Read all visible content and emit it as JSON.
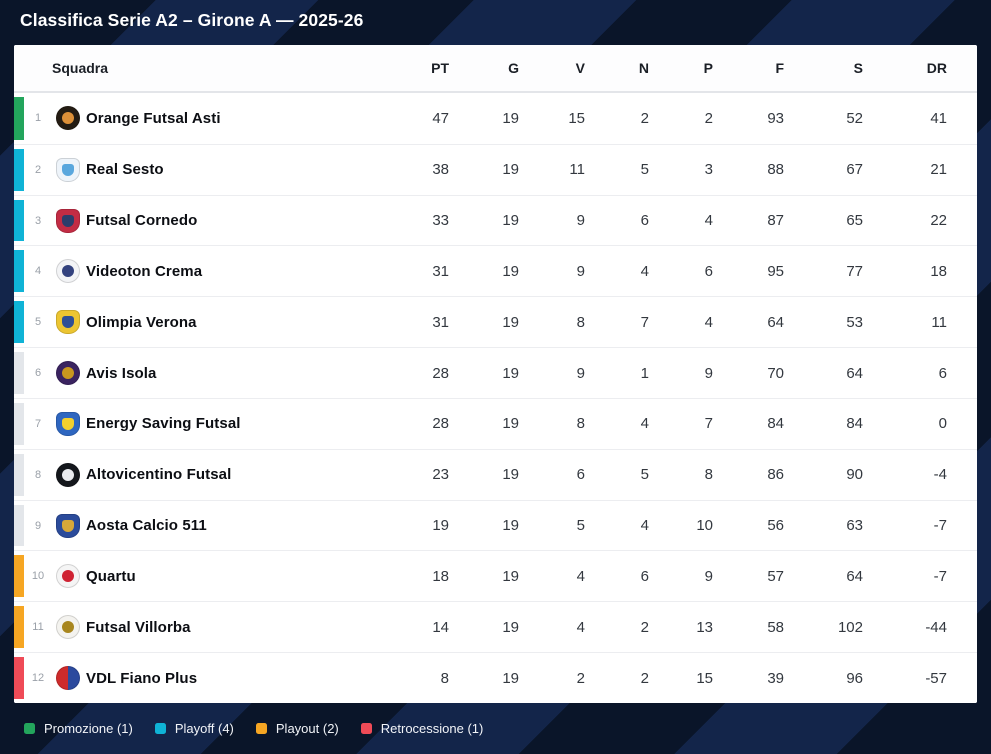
{
  "title": "Classifica Serie A2 – Girone A — 2025-26",
  "table": {
    "columns": [
      "Squadra",
      "PT",
      "G",
      "V",
      "N",
      "P",
      "F",
      "S",
      "DR"
    ],
    "rows": [
      {
        "pos": 1,
        "team": "Orange Futsal Asti",
        "zone": "promozione",
        "pt": 47,
        "g": 19,
        "v": 15,
        "n": 2,
        "p": 2,
        "f": 93,
        "s": 52,
        "dr": 41,
        "logo": {
          "shape": "circle",
          "bg": "#241c13",
          "fg": "#dd9038"
        }
      },
      {
        "pos": 2,
        "team": "Real Sesto",
        "zone": "playoff",
        "pt": 38,
        "g": 19,
        "v": 11,
        "n": 5,
        "p": 3,
        "f": 88,
        "s": 67,
        "dr": 21,
        "logo": {
          "shape": "shield",
          "bg": "#eef4fa",
          "fg": "#5aa7dd"
        }
      },
      {
        "pos": 3,
        "team": "Futsal Cornedo",
        "zone": "playoff",
        "pt": 33,
        "g": 19,
        "v": 9,
        "n": 6,
        "p": 4,
        "f": 87,
        "s": 65,
        "dr": 22,
        "logo": {
          "shape": "shield",
          "bg": "#c32c44",
          "fg": "#2c3d6b"
        }
      },
      {
        "pos": 4,
        "team": "Videoton Crema",
        "zone": "playoff",
        "pt": 31,
        "g": 19,
        "v": 9,
        "n": 4,
        "p": 6,
        "f": 95,
        "s": 77,
        "dr": 18,
        "logo": {
          "shape": "circle",
          "bg": "#f3f4f6",
          "fg": "#33427e"
        }
      },
      {
        "pos": 5,
        "team": "Olimpia Verona",
        "zone": "playoff",
        "pt": 31,
        "g": 19,
        "v": 8,
        "n": 7,
        "p": 4,
        "f": 64,
        "s": 53,
        "dr": 11,
        "logo": {
          "shape": "shield",
          "bg": "#ecc532",
          "fg": "#2e4f96"
        }
      },
      {
        "pos": 6,
        "team": "Avis Isola",
        "zone": "none",
        "pt": 28,
        "g": 19,
        "v": 9,
        "n": 1,
        "p": 9,
        "f": 70,
        "s": 64,
        "dr": 6,
        "logo": {
          "shape": "circle",
          "bg": "#3a2360",
          "fg": "#c9971f"
        }
      },
      {
        "pos": 7,
        "team": "Energy Saving Futsal",
        "zone": "none",
        "pt": 28,
        "g": 19,
        "v": 8,
        "n": 4,
        "p": 7,
        "f": 84,
        "s": 84,
        "dr": 0,
        "logo": {
          "shape": "shield",
          "bg": "#2e66c0",
          "fg": "#f2cf2e"
        }
      },
      {
        "pos": 8,
        "team": "Altovicentino Futsal",
        "zone": "none",
        "pt": 23,
        "g": 19,
        "v": 6,
        "n": 5,
        "p": 8,
        "f": 86,
        "s": 90,
        "dr": -4,
        "logo": {
          "shape": "circle",
          "bg": "#14171c",
          "fg": "#e9ebef"
        }
      },
      {
        "pos": 9,
        "team": "Aosta Calcio 511",
        "zone": "none",
        "pt": 19,
        "g": 19,
        "v": 5,
        "n": 4,
        "p": 10,
        "f": 56,
        "s": 63,
        "dr": -7,
        "logo": {
          "shape": "shield",
          "bg": "#2b4b9b",
          "fg": "#d8a839"
        }
      },
      {
        "pos": 10,
        "team": "Quartu",
        "zone": "playout",
        "pt": 18,
        "g": 19,
        "v": 4,
        "n": 6,
        "p": 9,
        "f": 57,
        "s": 64,
        "dr": -7,
        "logo": {
          "shape": "circle",
          "bg": "#f5f5f5",
          "fg": "#cf2333"
        }
      },
      {
        "pos": 11,
        "team": "Futsal Villorba",
        "zone": "playout",
        "pt": 14,
        "g": 19,
        "v": 4,
        "n": 2,
        "p": 13,
        "f": 58,
        "s": 102,
        "dr": -44,
        "logo": {
          "shape": "circle",
          "bg": "#f4f3ef",
          "fg": "#a8861e"
        }
      },
      {
        "pos": 12,
        "team": "VDL Fiano Plus",
        "zone": "retrocessione",
        "pt": 8,
        "g": 19,
        "v": 2,
        "n": 2,
        "p": 15,
        "f": 39,
        "s": 96,
        "dr": -57,
        "logo": {
          "shape": "circle",
          "bg": "#ce2b2b",
          "fg": "#2c4a9e",
          "split": true
        }
      }
    ]
  },
  "zone_colors": {
    "promozione": "#23a55c",
    "playoff": "#0fb3d6",
    "none": "#e3e6ea",
    "playout": "#f6a623",
    "retrocessione": "#ef4b57"
  },
  "legend": [
    {
      "label": "Promozione (1)",
      "color": "#23a55c"
    },
    {
      "label": "Playoff (4)",
      "color": "#0fb3d6"
    },
    {
      "label": "Playout (2)",
      "color": "#f6a623"
    },
    {
      "label": "Retrocessione (1)",
      "color": "#ef4b57"
    }
  ]
}
